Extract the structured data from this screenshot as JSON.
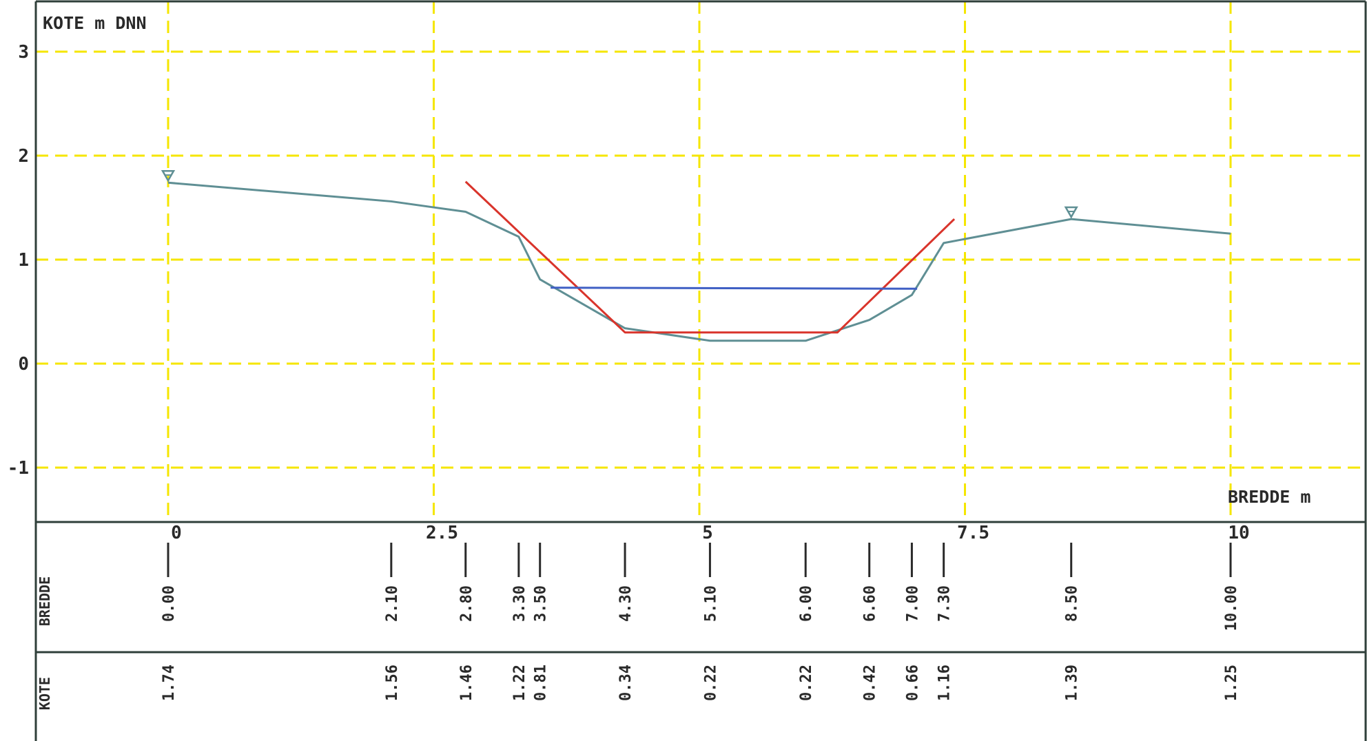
{
  "chart_data": {
    "type": "line",
    "ylabel": "KOTE m DNN",
    "xlabel": "BREDDE m",
    "xlim": [
      -1.25,
      11.5
    ],
    "ylim": [
      -1.5,
      3.5
    ],
    "x_ticks": [
      0,
      2.5,
      5,
      7.5,
      10
    ],
    "x_tick_labels": [
      "0",
      "2.5",
      "5",
      "7.5",
      "10"
    ],
    "y_ticks": [
      -1,
      0,
      1,
      2,
      3
    ],
    "y_tick_labels": [
      "-1",
      "0",
      "1",
      "2",
      "3"
    ],
    "grid": true,
    "grid_color": "#f5e600",
    "series": [
      {
        "color": "#5f8f94",
        "x": [
          0.0,
          2.1,
          2.8,
          3.3,
          3.5,
          4.3,
          5.1,
          6.0,
          6.6,
          7.0,
          7.3,
          8.5,
          10.0
        ],
        "y": [
          1.74,
          1.56,
          1.46,
          1.22,
          0.81,
          0.34,
          0.22,
          0.22,
          0.42,
          0.66,
          1.16,
          1.39,
          1.25
        ]
      },
      {
        "color": "#d9342b",
        "x": [
          2.8,
          4.3,
          6.3,
          7.4
        ],
        "y": [
          1.75,
          0.3,
          0.3,
          1.39
        ]
      },
      {
        "color": "#3f5fc4",
        "x": [
          3.6,
          7.05
        ],
        "y": [
          0.73,
          0.72
        ]
      }
    ],
    "markers": [
      {
        "symbol": "triangle-down",
        "x": 0.0,
        "y": 1.8
      },
      {
        "symbol": "triangle-down",
        "x": 8.5,
        "y": 1.45
      }
    ],
    "table": {
      "rows": [
        {
          "name": "BREDDE",
          "values": [
            "0.00",
            "2.10",
            "2.80",
            "3.30",
            "3.50",
            "4.30",
            "5.10",
            "6.00",
            "6.60",
            "7.00",
            "7.30",
            "8.50",
            "10.00"
          ]
        },
        {
          "name": "KOTE",
          "values": [
            "1.74",
            "1.56",
            "1.46",
            "1.22",
            "0.81",
            "0.34",
            "0.22",
            "0.22",
            "0.42",
            "0.66",
            "1.16",
            "1.39",
            "1.25"
          ]
        }
      ]
    }
  }
}
